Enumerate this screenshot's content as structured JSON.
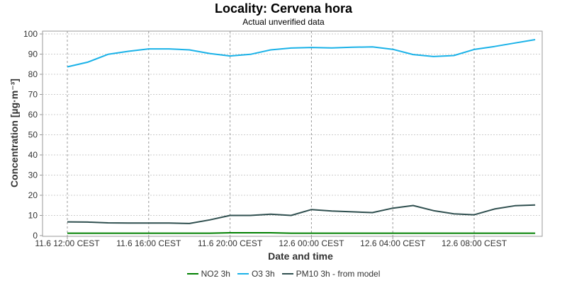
{
  "title": "Locality: Cervena hora",
  "subtitle": "Actual unverified data",
  "chart_data": {
    "type": "line",
    "title": "Locality: Cervena hora",
    "subtitle": "Actual unverified data",
    "xlabel": "Date and time",
    "ylabel": "Concentration [µg·m⁻³]",
    "ylim": [
      0,
      100
    ],
    "yticks": [
      "0",
      "10",
      "20",
      "30",
      "40",
      "50",
      "60",
      "70",
      "80",
      "90",
      "100"
    ],
    "xticks": [
      "11.6 12:00 CEST",
      "11.6 16:00 CEST",
      "11.6 20:00 CEST",
      "12.6 00:00 CEST",
      "12.6 04:00 CEST",
      "12.6 08:00 CEST"
    ],
    "x": [
      "11.6 12:00",
      "11.6 13:00",
      "11.6 14:00",
      "11.6 15:00",
      "11.6 16:00",
      "11.6 17:00",
      "11.6 18:00",
      "11.6 19:00",
      "11.6 20:00",
      "11.6 21:00",
      "11.6 22:00",
      "11.6 23:00",
      "12.6 00:00",
      "12.6 01:00",
      "12.6 02:00",
      "12.6 03:00",
      "12.6 04:00",
      "12.6 05:00",
      "12.6 06:00",
      "12.6 07:00",
      "12.6 08:00",
      "12.6 09:00",
      "12.6 10:00",
      "12.6 11:00"
    ],
    "grid": true,
    "legend_position": "bottom",
    "series": [
      {
        "name": "NO2 3h",
        "color": "#008000",
        "values": [
          1.2,
          1.2,
          1.2,
          1.2,
          1.2,
          1.2,
          1.2,
          1.2,
          1.4,
          1.4,
          1.4,
          1.2,
          1.2,
          1.2,
          1.2,
          1.2,
          1.2,
          1.2,
          1.2,
          1.2,
          1.2,
          1.2,
          1.2,
          1.2
        ]
      },
      {
        "name": "O3 3h",
        "color": "#1ab2e8",
        "values": [
          83.7,
          86.0,
          89.9,
          91.4,
          92.6,
          92.6,
          92.1,
          90.3,
          89.1,
          89.9,
          92.1,
          93.0,
          93.3,
          93.1,
          93.4,
          93.6,
          92.4,
          89.8,
          88.8,
          89.3,
          92.3,
          93.8,
          95.5,
          97.2
        ]
      },
      {
        "name": "PM10 3h - from model",
        "color": "#2f4f4f",
        "values": [
          6.8,
          6.7,
          6.3,
          6.2,
          6.2,
          6.2,
          6.0,
          7.8,
          10.0,
          10.0,
          10.6,
          10.0,
          12.9,
          12.2,
          11.8,
          11.4,
          13.6,
          14.9,
          12.4,
          10.8,
          10.3,
          13.2,
          14.8,
          15.2
        ]
      }
    ]
  }
}
